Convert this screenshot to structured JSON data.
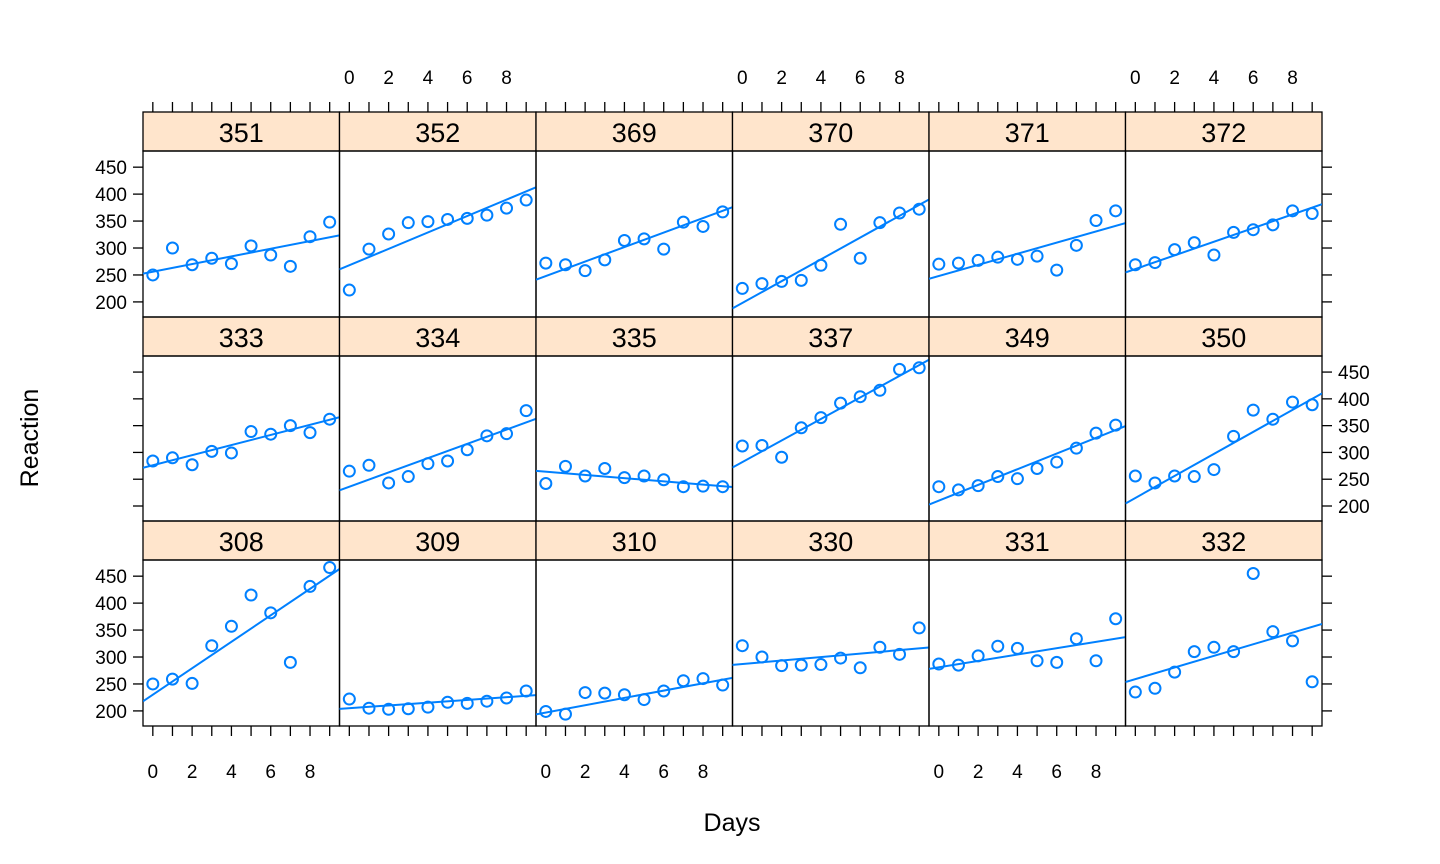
{
  "chart_data": {
    "type": "scatter",
    "layout": {
      "columns": 6,
      "rows": 3,
      "order": "bottom-to-top, left-to-right"
    },
    "xlabel": "Days",
    "ylabel": "Reaction",
    "xlim": [
      -0.5,
      9.5
    ],
    "ylim": [
      172,
      480
    ],
    "x_ticks": [
      0,
      2,
      4,
      6,
      8
    ],
    "y_ticks": [
      200,
      250,
      300,
      350,
      400,
      450
    ],
    "point_color": "#0080ff",
    "line_color": "#0080ff",
    "strip_color": "#ffe5cc",
    "panels": [
      {
        "subject": "308",
        "x": [
          0,
          1,
          2,
          3,
          4,
          5,
          6,
          7,
          8,
          9
        ],
        "y": [
          250,
          259,
          251,
          321,
          357,
          415,
          382,
          290,
          431,
          466
        ],
        "fit": [
          230,
          451
        ]
      },
      {
        "subject": "309",
        "x": [
          0,
          1,
          2,
          3,
          4,
          5,
          6,
          7,
          8,
          9
        ],
        "y": [
          222,
          205,
          203,
          204,
          207,
          216,
          214,
          218,
          224,
          237
        ],
        "fit": [
          205,
          228
        ]
      },
      {
        "subject": "310",
        "x": [
          0,
          1,
          2,
          3,
          4,
          5,
          6,
          7,
          8,
          9
        ],
        "y": [
          199,
          194,
          234,
          233,
          230,
          221,
          237,
          256,
          260,
          248
        ],
        "fit": [
          197,
          258
        ]
      },
      {
        "subject": "330",
        "x": [
          0,
          1,
          2,
          3,
          4,
          5,
          6,
          7,
          8,
          9
        ],
        "y": [
          321,
          300,
          284,
          285,
          286,
          298,
          280,
          318,
          305,
          354
        ],
        "fit": [
          287,
          316
        ]
      },
      {
        "subject": "331",
        "x": [
          0,
          1,
          2,
          3,
          4,
          5,
          6,
          7,
          8,
          9
        ],
        "y": [
          287,
          285,
          302,
          320,
          316,
          293,
          290,
          334,
          293,
          371
        ],
        "fit": [
          281,
          334
        ]
      },
      {
        "subject": "332",
        "x": [
          0,
          1,
          2,
          3,
          4,
          5,
          6,
          7,
          8,
          9
        ],
        "y": [
          235,
          242,
          272,
          310,
          318,
          310,
          455,
          347,
          330,
          254
        ],
        "fit": [
          259,
          356
        ]
      },
      {
        "subject": "333",
        "x": [
          0,
          1,
          2,
          3,
          4,
          5,
          6,
          7,
          8,
          9
        ],
        "y": [
          284,
          290,
          277,
          302,
          299,
          339,
          334,
          350,
          337,
          362
        ],
        "fit": [
          276,
          361
        ]
      },
      {
        "subject": "334",
        "x": [
          0,
          1,
          2,
          3,
          4,
          5,
          6,
          7,
          8,
          9
        ],
        "y": [
          265,
          276,
          243,
          255,
          279,
          284,
          305,
          331,
          335,
          378
        ],
        "fit": [
          236,
          356
        ]
      },
      {
        "subject": "335",
        "x": [
          0,
          1,
          2,
          3,
          4,
          5,
          6,
          7,
          8,
          9
        ],
        "y": [
          242,
          274,
          256,
          270,
          253,
          256,
          249,
          236,
          237,
          236
        ],
        "fit": [
          264,
          237
        ]
      },
      {
        "subject": "337",
        "x": [
          0,
          1,
          2,
          3,
          4,
          5,
          6,
          7,
          8,
          9
        ],
        "y": [
          312,
          313,
          291,
          346,
          365,
          392,
          404,
          416,
          455,
          458
        ],
        "fit": [
          282,
          463
        ]
      },
      {
        "subject": "349",
        "x": [
          0,
          1,
          2,
          3,
          4,
          5,
          6,
          7,
          8,
          9
        ],
        "y": [
          236,
          230,
          238,
          255,
          251,
          270,
          282,
          308,
          336,
          351
        ],
        "fit": [
          210,
          342
        ]
      },
      {
        "subject": "350",
        "x": [
          0,
          1,
          2,
          3,
          4,
          5,
          6,
          7,
          8,
          9
        ],
        "y": [
          256,
          243,
          256,
          255,
          268,
          330,
          379,
          362,
          394,
          389
        ],
        "fit": [
          215,
          400
        ]
      },
      {
        "subject": "351",
        "x": [
          0,
          1,
          2,
          3,
          4,
          5,
          6,
          7,
          8,
          9
        ],
        "y": [
          250,
          300,
          269,
          281,
          271,
          304,
          287,
          266,
          321,
          348
        ],
        "fit": [
          256,
          320
        ]
      },
      {
        "subject": "352",
        "x": [
          0,
          1,
          2,
          3,
          4,
          5,
          6,
          7,
          8,
          9
        ],
        "y": [
          222,
          298,
          326,
          347,
          349,
          353,
          355,
          361,
          374,
          389
        ],
        "fit": [
          268,
          405
        ]
      },
      {
        "subject": "369",
        "x": [
          0,
          1,
          2,
          3,
          4,
          5,
          6,
          7,
          8,
          9
        ],
        "y": [
          272,
          269,
          258,
          278,
          314,
          317,
          298,
          348,
          340,
          367
        ],
        "fit": [
          248,
          369
        ]
      },
      {
        "subject": "370",
        "x": [
          0,
          1,
          2,
          3,
          4,
          5,
          6,
          7,
          8,
          9
        ],
        "y": [
          225,
          234,
          238,
          240,
          268,
          344,
          281,
          347,
          365,
          372
        ],
        "fit": [
          198,
          380
        ]
      },
      {
        "subject": "371",
        "x": [
          0,
          1,
          2,
          3,
          4,
          5,
          6,
          7,
          8,
          9
        ],
        "y": [
          270,
          272,
          277,
          283,
          279,
          285,
          259,
          305,
          351,
          369
        ],
        "fit": [
          248,
          341
        ]
      },
      {
        "subject": "372",
        "x": [
          0,
          1,
          2,
          3,
          4,
          5,
          6,
          7,
          8,
          9
        ],
        "y": [
          269,
          273,
          297,
          310,
          287,
          329,
          334,
          343,
          369,
          364
        ],
        "fit": [
          261,
          375
        ]
      }
    ]
  }
}
